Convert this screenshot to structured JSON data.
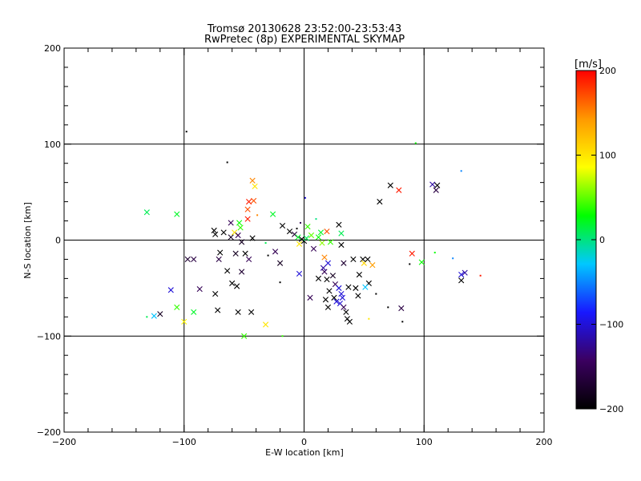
{
  "chart_data": {
    "type": "scatter",
    "title": "Tromsø 20130628 23:52:00-23:53:43",
    "subtitle": "RwPretec (8p) EXPERIMENTAL SKYMAP",
    "xlabel": "E-W location [km]",
    "ylabel": "N-S location [km]",
    "xlim": [
      -200,
      200
    ],
    "ylim": [
      -200,
      200
    ],
    "xticks": [
      "-200",
      "-100",
      "0",
      "100",
      "200"
    ],
    "yticks": [
      "-200",
      "-100",
      "0",
      "100",
      "200"
    ],
    "grid": true,
    "colorbar": {
      "label": "[m/s]",
      "range": [
        -200,
        200
      ],
      "ticks": [
        "-200",
        "-100",
        "0",
        "100",
        "200"
      ],
      "colors": [
        "#000000",
        "#3b0060",
        "#1818ff",
        "#00c8ff",
        "#00ff00",
        "#ffff00",
        "#ff9900",
        "#ff0000"
      ]
    },
    "points": [
      {
        "x": -131,
        "y": 29,
        "v": 10,
        "m": "x"
      },
      {
        "x": -106,
        "y": 27,
        "v": 20,
        "m": "x"
      },
      {
        "x": -111,
        "y": -52,
        "v": -100,
        "m": "x"
      },
      {
        "x": -106,
        "y": -70,
        "v": 40,
        "m": "x"
      },
      {
        "x": -120,
        "y": -77,
        "v": -180,
        "m": "x"
      },
      {
        "x": -125,
        "y": -79,
        "v": -30,
        "m": "x"
      },
      {
        "x": -131,
        "y": -80,
        "v": 10,
        "m": "."
      },
      {
        "x": -100,
        "y": -85,
        "v": 90,
        "m": "x"
      },
      {
        "x": -92,
        "y": -75,
        "v": 20,
        "m": "x"
      },
      {
        "x": -97,
        "y": -20,
        "v": -170,
        "m": "x"
      },
      {
        "x": -92,
        "y": -20,
        "v": -160,
        "m": "x"
      },
      {
        "x": -87,
        "y": -51,
        "v": -150,
        "m": "x"
      },
      {
        "x": -98,
        "y": 113,
        "v": -200,
        "m": "."
      },
      {
        "x": -64,
        "y": 81,
        "v": -200,
        "m": "."
      },
      {
        "x": -43,
        "y": 62,
        "v": 150,
        "m": "x"
      },
      {
        "x": -41,
        "y": 56,
        "v": 100,
        "m": "x"
      },
      {
        "x": -42,
        "y": 41,
        "v": 170,
        "m": "x"
      },
      {
        "x": -46,
        "y": 40,
        "v": 190,
        "m": "x"
      },
      {
        "x": -47,
        "y": 32,
        "v": 170,
        "m": "x"
      },
      {
        "x": -47,
        "y": 22,
        "v": 190,
        "m": "x"
      },
      {
        "x": -26,
        "y": 27,
        "v": 20,
        "m": "x"
      },
      {
        "x": -39,
        "y": 26,
        "v": 150,
        "m": "."
      },
      {
        "x": -61,
        "y": 18,
        "v": -150,
        "m": "x"
      },
      {
        "x": -54,
        "y": 18,
        "v": 30,
        "m": "x"
      },
      {
        "x": -53,
        "y": 13,
        "v": 40,
        "m": "x"
      },
      {
        "x": -58,
        "y": 8,
        "v": 100,
        "m": "x"
      },
      {
        "x": -67,
        "y": 8,
        "v": -200,
        "m": "x"
      },
      {
        "x": -75,
        "y": 10,
        "v": -200,
        "m": "x"
      },
      {
        "x": -74,
        "y": 6,
        "v": -200,
        "m": "x"
      },
      {
        "x": -55,
        "y": 5,
        "v": -150,
        "m": "x"
      },
      {
        "x": -61,
        "y": 3,
        "v": -180,
        "m": "x"
      },
      {
        "x": -43,
        "y": 2,
        "v": -200,
        "m": "x"
      },
      {
        "x": -52,
        "y": -2,
        "v": -180,
        "m": "x"
      },
      {
        "x": -32,
        "y": -3,
        "v": 10,
        "m": "."
      },
      {
        "x": -70,
        "y": -13,
        "v": -200,
        "m": "x"
      },
      {
        "x": -71,
        "y": -20,
        "v": -160,
        "m": "x"
      },
      {
        "x": -57,
        "y": -14,
        "v": -180,
        "m": "x"
      },
      {
        "x": -49,
        "y": -14,
        "v": -200,
        "m": "x"
      },
      {
        "x": -46,
        "y": -20,
        "v": -150,
        "m": "x"
      },
      {
        "x": -64,
        "y": -32,
        "v": -200,
        "m": "x"
      },
      {
        "x": -52,
        "y": -33,
        "v": -170,
        "m": "x"
      },
      {
        "x": -60,
        "y": -45,
        "v": -200,
        "m": "x"
      },
      {
        "x": -56,
        "y": -48,
        "v": -200,
        "m": "x"
      },
      {
        "x": -74,
        "y": -56,
        "v": -200,
        "m": "x"
      },
      {
        "x": -72,
        "y": -73,
        "v": -200,
        "m": "x"
      },
      {
        "x": -55,
        "y": -75,
        "v": -200,
        "m": "x"
      },
      {
        "x": -44,
        "y": -75,
        "v": -200,
        "m": "x"
      },
      {
        "x": -32,
        "y": -88,
        "v": 100,
        "m": "x"
      },
      {
        "x": -50,
        "y": -100,
        "v": 40,
        "m": "x"
      },
      {
        "x": -18,
        "y": -100,
        "v": 40,
        "m": "."
      },
      {
        "x": -24,
        "y": -12,
        "v": -150,
        "m": "x"
      },
      {
        "x": -30,
        "y": -16,
        "v": -200,
        "m": "."
      },
      {
        "x": -20,
        "y": -24,
        "v": -180,
        "m": "x"
      },
      {
        "x": -18,
        "y": 15,
        "v": -200,
        "m": "x"
      },
      {
        "x": -12,
        "y": 9,
        "v": -200,
        "m": "x"
      },
      {
        "x": -8,
        "y": 6,
        "v": -170,
        "m": "x"
      },
      {
        "x": -6,
        "y": 12,
        "v": -200,
        "m": "."
      },
      {
        "x": -3,
        "y": 18,
        "v": -150,
        "m": "."
      },
      {
        "x": -5,
        "y": 3,
        "v": 20,
        "m": "x"
      },
      {
        "x": -2,
        "y": 1,
        "v": -200,
        "m": "x"
      },
      {
        "x": 0,
        "y": -1,
        "v": -200,
        "m": "x"
      },
      {
        "x": 2,
        "y": 2,
        "v": 10,
        "m": "x"
      },
      {
        "x": -4,
        "y": -4,
        "v": 100,
        "m": "x"
      },
      {
        "x": 1,
        "y": 44,
        "v": -100,
        "m": "."
      },
      {
        "x": 3,
        "y": 14,
        "v": 40,
        "m": "x"
      },
      {
        "x": 6,
        "y": 5,
        "v": 50,
        "m": "x"
      },
      {
        "x": 8,
        "y": -9,
        "v": -150,
        "m": "x"
      },
      {
        "x": 10,
        "y": 22,
        "v": 0,
        "m": "."
      },
      {
        "x": 12,
        "y": 3,
        "v": 30,
        "m": "x"
      },
      {
        "x": 15,
        "y": -3,
        "v": 60,
        "m": "x"
      },
      {
        "x": 14,
        "y": 8,
        "v": 20,
        "m": "x"
      },
      {
        "x": 17,
        "y": -18,
        "v": 150,
        "m": "x"
      },
      {
        "x": 19,
        "y": 9,
        "v": 170,
        "m": "x"
      },
      {
        "x": 20,
        "y": -24,
        "v": -100,
        "m": "x"
      },
      {
        "x": 22,
        "y": -2,
        "v": 40,
        "m": "x"
      },
      {
        "x": 24,
        "y": -37,
        "v": -180,
        "m": "x"
      },
      {
        "x": 26,
        "y": -46,
        "v": -150,
        "m": "x"
      },
      {
        "x": 29,
        "y": 16,
        "v": -200,
        "m": "x"
      },
      {
        "x": 31,
        "y": 7,
        "v": 10,
        "m": "x"
      },
      {
        "x": 31,
        "y": -5,
        "v": -200,
        "m": "x"
      },
      {
        "x": 33,
        "y": -24,
        "v": -170,
        "m": "x"
      },
      {
        "x": 37,
        "y": -49,
        "v": -200,
        "m": "x"
      },
      {
        "x": 17,
        "y": -33,
        "v": -150,
        "m": "x"
      },
      {
        "x": 19,
        "y": -41,
        "v": -200,
        "m": "x"
      },
      {
        "x": 21,
        "y": -53,
        "v": -200,
        "m": "x"
      },
      {
        "x": 25,
        "y": -60,
        "v": -200,
        "m": "x"
      },
      {
        "x": 27,
        "y": -64,
        "v": -100,
        "m": "x"
      },
      {
        "x": 30,
        "y": -66,
        "v": -100,
        "m": "x"
      },
      {
        "x": 32,
        "y": -60,
        "v": -100,
        "m": "x"
      },
      {
        "x": 33,
        "y": -70,
        "v": -150,
        "m": "x"
      },
      {
        "x": 35,
        "y": -75,
        "v": -200,
        "m": "x"
      },
      {
        "x": 36,
        "y": -82,
        "v": -200,
        "m": "x"
      },
      {
        "x": 38,
        "y": -85,
        "v": -200,
        "m": "x"
      },
      {
        "x": 29,
        "y": -50,
        "v": -100,
        "m": "x"
      },
      {
        "x": 31,
        "y": -56,
        "v": -100,
        "m": "x"
      },
      {
        "x": 20,
        "y": -70,
        "v": -200,
        "m": "x"
      },
      {
        "x": 18,
        "y": -62,
        "v": -200,
        "m": "x"
      },
      {
        "x": 12,
        "y": -40,
        "v": -200,
        "m": "x"
      },
      {
        "x": 5,
        "y": -60,
        "v": -150,
        "m": "x"
      },
      {
        "x": -4,
        "y": -35,
        "v": -100,
        "m": "x"
      },
      {
        "x": -20,
        "y": -44,
        "v": -200,
        "m": "."
      },
      {
        "x": 16,
        "y": -29,
        "v": -120,
        "m": "x"
      },
      {
        "x": 41,
        "y": -20,
        "v": -200,
        "m": "x"
      },
      {
        "x": 49,
        "y": -20,
        "v": -200,
        "m": "x"
      },
      {
        "x": 50,
        "y": -24,
        "v": 110,
        "m": "x"
      },
      {
        "x": 53,
        "y": -20,
        "v": -200,
        "m": "x"
      },
      {
        "x": 57,
        "y": -26,
        "v": 140,
        "m": "x"
      },
      {
        "x": 54,
        "y": -45,
        "v": -200,
        "m": "x"
      },
      {
        "x": 46,
        "y": -36,
        "v": -200,
        "m": "x"
      },
      {
        "x": 43,
        "y": -50,
        "v": -200,
        "m": "x"
      },
      {
        "x": 51,
        "y": -49,
        "v": -30,
        "m": "x"
      },
      {
        "x": 45,
        "y": -58,
        "v": -200,
        "m": "x"
      },
      {
        "x": 54,
        "y": -82,
        "v": 100,
        "m": "."
      },
      {
        "x": 60,
        "y": -56,
        "v": -200,
        "m": "."
      },
      {
        "x": 63,
        "y": 40,
        "v": -200,
        "m": "x"
      },
      {
        "x": 72,
        "y": 57,
        "v": -200,
        "m": "x"
      },
      {
        "x": 79,
        "y": 52,
        "v": 190,
        "m": "x"
      },
      {
        "x": 93,
        "y": 101,
        "v": 30,
        "m": "."
      },
      {
        "x": 90,
        "y": -14,
        "v": 190,
        "m": "x"
      },
      {
        "x": 88,
        "y": -25,
        "v": -200,
        "m": "."
      },
      {
        "x": 98,
        "y": -23,
        "v": 30,
        "m": "x"
      },
      {
        "x": 70,
        "y": -70,
        "v": -200,
        "m": "."
      },
      {
        "x": 81,
        "y": -71,
        "v": -160,
        "m": "x"
      },
      {
        "x": 82,
        "y": -85,
        "v": -200,
        "m": "."
      },
      {
        "x": 107,
        "y": 58,
        "v": -120,
        "m": "x"
      },
      {
        "x": 110,
        "y": 52,
        "v": -160,
        "m": "x"
      },
      {
        "x": 111,
        "y": 57,
        "v": -200,
        "m": "x"
      },
      {
        "x": 109,
        "y": -13,
        "v": 30,
        "m": "."
      },
      {
        "x": 124,
        "y": -19,
        "v": -50,
        "m": "."
      },
      {
        "x": 131,
        "y": 72,
        "v": -50,
        "m": "."
      },
      {
        "x": 134,
        "y": -34,
        "v": -120,
        "m": "x"
      },
      {
        "x": 131,
        "y": -36,
        "v": -100,
        "m": "x"
      },
      {
        "x": 131,
        "y": -42,
        "v": -200,
        "m": "x"
      },
      {
        "x": 147,
        "y": -37,
        "v": 190,
        "m": "."
      }
    ]
  }
}
